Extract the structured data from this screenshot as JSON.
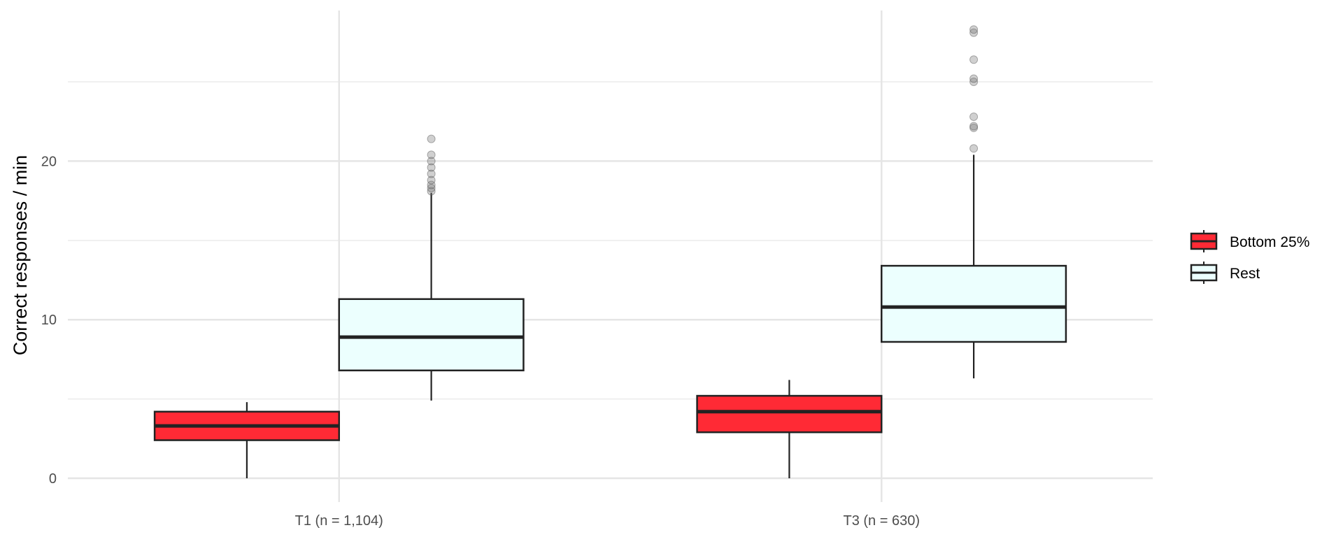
{
  "chart_data": {
    "type": "boxplot",
    "title": "",
    "xlabel": "",
    "ylabel": "Correct responses / min",
    "ylim": [
      -1.5,
      29.5
    ],
    "y_ticks": [
      0,
      10,
      20
    ],
    "grid": true,
    "legend_position": "right",
    "categories": [
      "T1 (n = 1,104)",
      "T3 (n = 630)"
    ],
    "series": [
      {
        "name": "Bottom 25%",
        "color": "#ff2a35",
        "boxes": [
          {
            "category": "T1 (n = 1,104)",
            "min": 0,
            "q1": 2.4,
            "median": 3.3,
            "q3": 4.2,
            "max": 4.8,
            "outliers": []
          },
          {
            "category": "T3 (n = 630)",
            "min": 0,
            "q1": 2.9,
            "median": 4.2,
            "q3": 5.2,
            "max": 6.2,
            "outliers": []
          }
        ]
      },
      {
        "name": "Rest",
        "color": "#ecfffe",
        "boxes": [
          {
            "category": "T1 (n = 1,104)",
            "min": 4.9,
            "q1": 6.8,
            "median": 8.9,
            "q3": 11.3,
            "max": 18.0,
            "outliers": [
              18.1,
              18.3,
              18.5,
              18.8,
              19.2,
              19.6,
              20.0,
              20.4,
              21.4
            ]
          },
          {
            "category": "T3 (n = 630)",
            "min": 6.3,
            "q1": 8.6,
            "median": 10.8,
            "q3": 13.4,
            "max": 20.4,
            "outliers": [
              20.8,
              22.1,
              22.2,
              22.8,
              25.0,
              25.2,
              26.4,
              28.1,
              28.3
            ]
          }
        ]
      }
    ]
  }
}
